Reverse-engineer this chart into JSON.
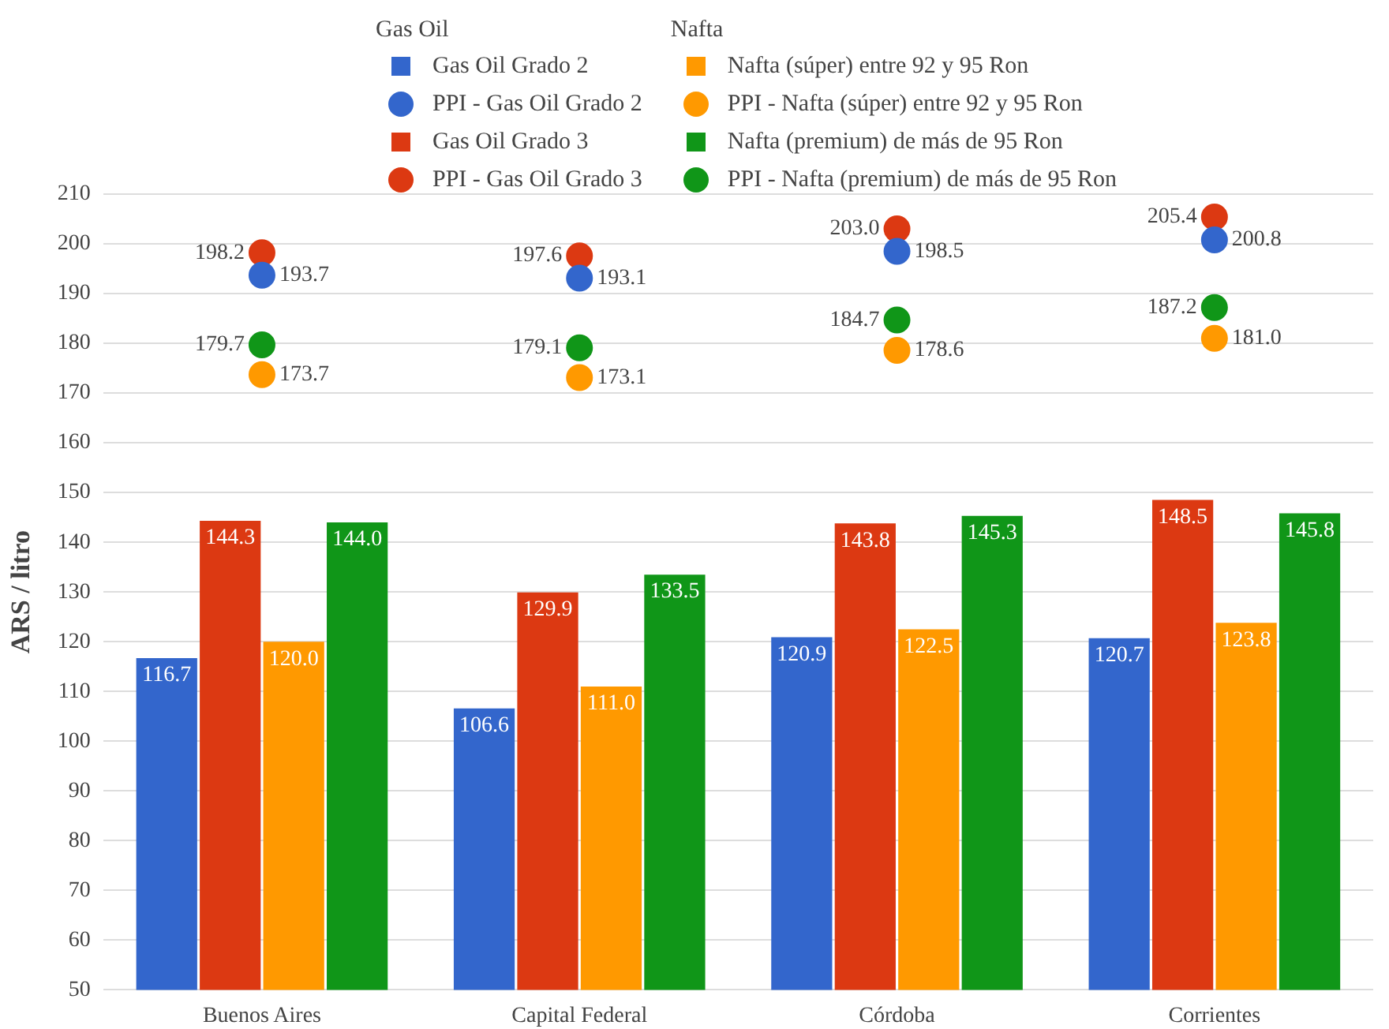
{
  "chart_data": {
    "type": "bar",
    "categories": [
      "Buenos Aires",
      "Capital Federal",
      "Córdoba",
      "Corrientes"
    ],
    "ylabel": "ARS / litro",
    "ylim": [
      50,
      210
    ],
    "yticks": [
      50,
      60,
      70,
      80,
      90,
      100,
      110,
      120,
      130,
      140,
      150,
      160,
      170,
      180,
      190,
      200,
      210
    ],
    "grid": "y",
    "legend": "top",
    "annotations": [
      "Gas Oil",
      "Nafta"
    ],
    "series": [
      {
        "name": "Gas Oil Grado 2",
        "color": "#3366cc",
        "values": [
          116.7,
          106.6,
          120.9,
          120.7
        ],
        "value_labels": [
          "116.7",
          "106.6",
          "120.9",
          "120.7"
        ]
      },
      {
        "name": "PPI - Gas Oil Grado 2",
        "type": "scatter",
        "marker": "circle",
        "color": "#3366cc",
        "values": [
          193.7,
          193.1,
          198.5,
          200.8
        ],
        "value_labels": [
          "193.7",
          "193.1",
          "198.5",
          "200.8"
        ]
      },
      {
        "name": "Gas Oil Grado 3",
        "color": "#dc3912",
        "values": [
          144.3,
          129.9,
          143.8,
          148.5
        ],
        "value_labels": [
          "144.3",
          "129.9",
          "143.8",
          "148.5"
        ]
      },
      {
        "name": "PPI - Gas Oil Grado 3",
        "type": "scatter",
        "marker": "circle",
        "color": "#dc3912",
        "values": [
          198.2,
          197.6,
          203.0,
          205.4
        ],
        "value_labels": [
          "198.2",
          "197.6",
          "203.0",
          "205.4"
        ]
      },
      {
        "name": "Nafta (súper) entre 92 y 95 Ron",
        "color": "#ff9900",
        "values": [
          120.0,
          111.0,
          122.5,
          123.8
        ],
        "value_labels": [
          "120.0",
          "111.0",
          "122.5",
          "123.8"
        ]
      },
      {
        "name": "PPI - Nafta (súper) entre 92 y 95 Ron",
        "type": "scatter",
        "marker": "circle",
        "color": "#ff9900",
        "values": [
          173.7,
          173.1,
          178.6,
          181.0
        ],
        "value_labels": [
          "173.7",
          "173.1",
          "178.6",
          "181.0"
        ]
      },
      {
        "name": "Nafta (premium) de más de 95 Ron",
        "color": "#109618",
        "values": [
          144.0,
          133.5,
          145.3,
          145.8
        ],
        "value_labels": [
          "144.0",
          "133.5",
          "145.3",
          "145.8"
        ]
      },
      {
        "name": "PPI - Nafta (premium) de más de 95 Ron",
        "type": "scatter",
        "marker": "circle",
        "color": "#109618",
        "values": [
          179.7,
          179.1,
          184.7,
          187.2
        ],
        "value_labels": [
          "179.7",
          "179.1",
          "184.7",
          "187.2"
        ]
      }
    ]
  }
}
